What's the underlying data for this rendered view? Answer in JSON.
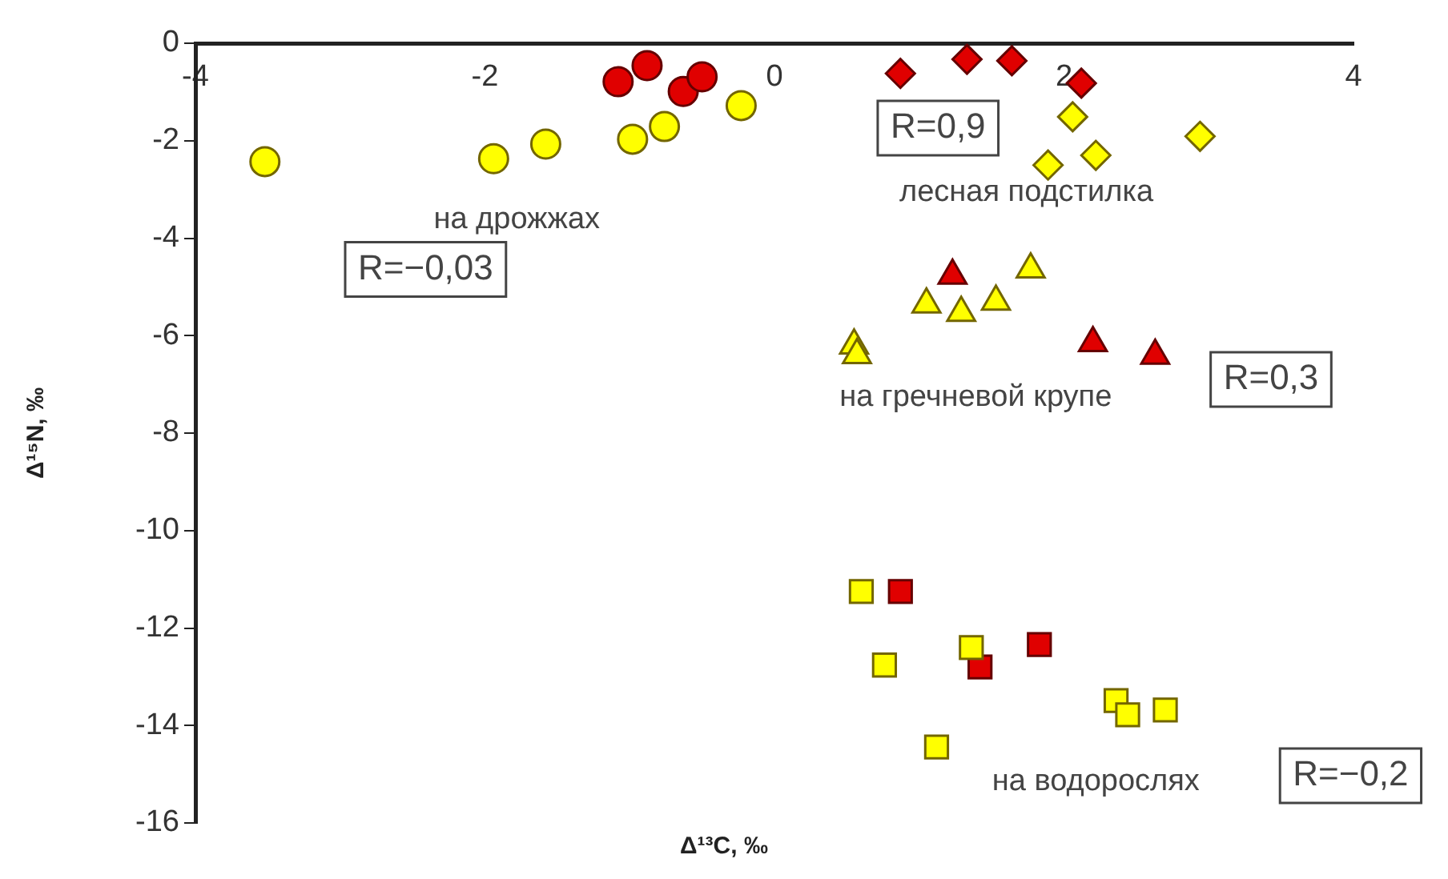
{
  "chart_data": {
    "type": "scatter",
    "xlabel": "Δ¹³C, ‰",
    "ylabel": "Δ¹⁵N, ‰",
    "xlim": [
      -4,
      4
    ],
    "xticks": [
      -4,
      -2,
      0,
      2,
      4
    ],
    "ylim": [
      -16,
      0
    ],
    "yticks": [
      -16,
      -14,
      -12,
      -10,
      -8,
      -6,
      -4,
      -2,
      0
    ],
    "grid": false,
    "legend": false,
    "series": [
      {
        "color": "#ffff00",
        "marker": "circle",
        "x": [
          -3.52,
          -1.94,
          -1.58,
          -0.98,
          -0.76,
          -0.23
        ],
        "values": [
          -2.43,
          -2.37,
          -2.07,
          -1.97,
          -1.71,
          -1.28
        ]
      },
      {
        "color": "#e00000",
        "marker": "circle",
        "x": [
          -1.08,
          -0.88,
          -0.63,
          -0.5
        ],
        "values": [
          -0.79,
          -0.46,
          -0.99,
          -0.69
        ]
      },
      {
        "color": "#e00000",
        "marker": "diamond",
        "x": [
          0.87,
          1.33,
          1.64,
          2.12
        ],
        "values": [
          -0.62,
          -0.33,
          -0.36,
          -0.82
        ]
      },
      {
        "color": "#ffff00",
        "marker": "diamond",
        "x": [
          2.06,
          1.89,
          2.22,
          2.94
        ],
        "values": [
          -1.51,
          -2.5,
          -2.3,
          -1.91
        ]
      },
      {
        "color": "#ffff00",
        "marker": "triangle",
        "x": [
          0.55,
          0.57,
          1.05,
          1.29,
          1.53,
          1.77
        ],
        "values": [
          -6.2,
          -6.4,
          -5.36,
          -5.53,
          -5.3,
          -4.64
        ]
      },
      {
        "color": "#e00000",
        "marker": "triangle",
        "x": [
          1.23,
          2.2,
          2.63
        ],
        "values": [
          -4.77,
          -6.15,
          -6.41
        ]
      },
      {
        "color": "#ffff00",
        "marker": "square",
        "x": [
          0.6,
          0.76,
          1.36,
          1.12,
          2.36,
          2.44,
          2.7
        ],
        "values": [
          -11.25,
          -12.76,
          -12.4,
          -14.44,
          -13.49,
          -13.78,
          -13.68
        ]
      },
      {
        "color": "#e00000",
        "marker": "square",
        "x": [
          0.87,
          1.42,
          1.83
        ],
        "values": [
          -11.25,
          -12.8,
          -12.34
        ]
      }
    ],
    "annotations": [
      "на дрожжах",
      "лесная подстилка",
      "на гречневой крупе",
      "на водорослях",
      "R=−0,03",
      "R=0,9",
      "R=0,3",
      "R=−0,2"
    ]
  }
}
